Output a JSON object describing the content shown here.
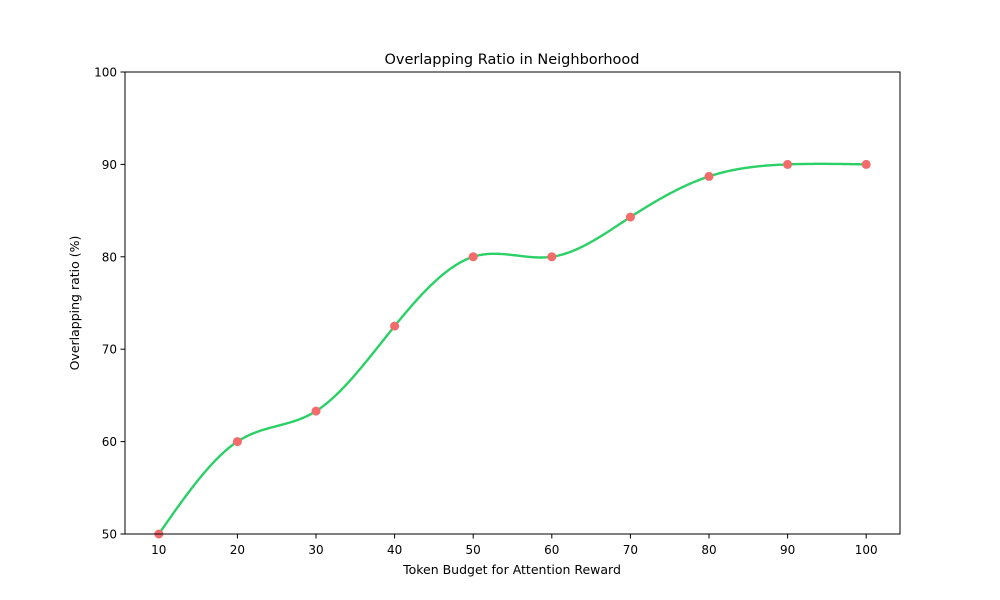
{
  "chart_data": {
    "type": "line",
    "title": "Overlapping Ratio in Neighborhood",
    "xlabel": "Token Budget for Attention Reward",
    "ylabel": "Overlapping ratio (%)",
    "x": [
      10,
      20,
      30,
      40,
      50,
      60,
      70,
      80,
      90,
      100
    ],
    "y": [
      50,
      60,
      63.3,
      72.5,
      80,
      80,
      84.3,
      88.7,
      90,
      90
    ],
    "xticks": [
      10,
      20,
      30,
      40,
      50,
      60,
      70,
      80,
      90,
      100
    ],
    "yticks": [
      50,
      60,
      70,
      80,
      90,
      100
    ],
    "xlim": [
      5.7,
      104.3
    ],
    "ylim": [
      50,
      100
    ],
    "grid": false,
    "line_color": "#2bd066",
    "marker_color": "#f46b6b"
  }
}
